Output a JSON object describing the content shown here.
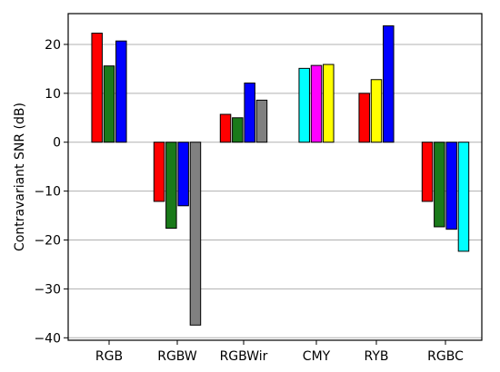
{
  "chart_data": {
    "type": "bar",
    "title": "",
    "xlabel": "",
    "ylabel": "Contravariant SNR (dB)",
    "ylim": [
      -40.5,
      26.3
    ],
    "yticks": [
      20,
      10,
      0,
      -10,
      -20,
      -30,
      -40
    ],
    "ytick_labels": [
      "20",
      "10",
      "0",
      "−10",
      "−20",
      "−30",
      "−40"
    ],
    "grid": "horizontal",
    "legend": "none",
    "groups": [
      {
        "category": "RGB",
        "bars": [
          {
            "value": 22.3,
            "color": "#ff0000"
          },
          {
            "value": 15.6,
            "color": "#1a7a1a"
          },
          {
            "value": 20.7,
            "color": "#0000ff"
          }
        ]
      },
      {
        "category": "RGBW",
        "bars": [
          {
            "value": -12.1,
            "color": "#ff0000"
          },
          {
            "value": -17.6,
            "color": "#1a7a1a"
          },
          {
            "value": -13.0,
            "color": "#0000ff"
          },
          {
            "value": -37.4,
            "color": "#808080"
          }
        ]
      },
      {
        "category": "RGBWir",
        "bars": [
          {
            "value": 5.7,
            "color": "#ff0000"
          },
          {
            "value": 5.0,
            "color": "#1a7a1a"
          },
          {
            "value": 12.1,
            "color": "#0000ff"
          },
          {
            "value": 8.6,
            "color": "#808080"
          }
        ]
      },
      {
        "category": "CMY",
        "bars": [
          {
            "value": 15.1,
            "color": "#00ffff"
          },
          {
            "value": 15.7,
            "color": "#ff00ff"
          },
          {
            "value": 15.9,
            "color": "#ffff00"
          }
        ]
      },
      {
        "category": "RYB",
        "bars": [
          {
            "value": 10.0,
            "color": "#ff0000"
          },
          {
            "value": 12.8,
            "color": "#ffff00"
          },
          {
            "value": 23.8,
            "color": "#0000ff"
          }
        ]
      },
      {
        "category": "RGBC",
        "bars": [
          {
            "value": -12.1,
            "color": "#ff0000"
          },
          {
            "value": -17.3,
            "color": "#1a7a1a"
          },
          {
            "value": -17.8,
            "color": "#0000ff"
          },
          {
            "value": -22.3,
            "color": "#00ffff"
          }
        ]
      }
    ]
  }
}
